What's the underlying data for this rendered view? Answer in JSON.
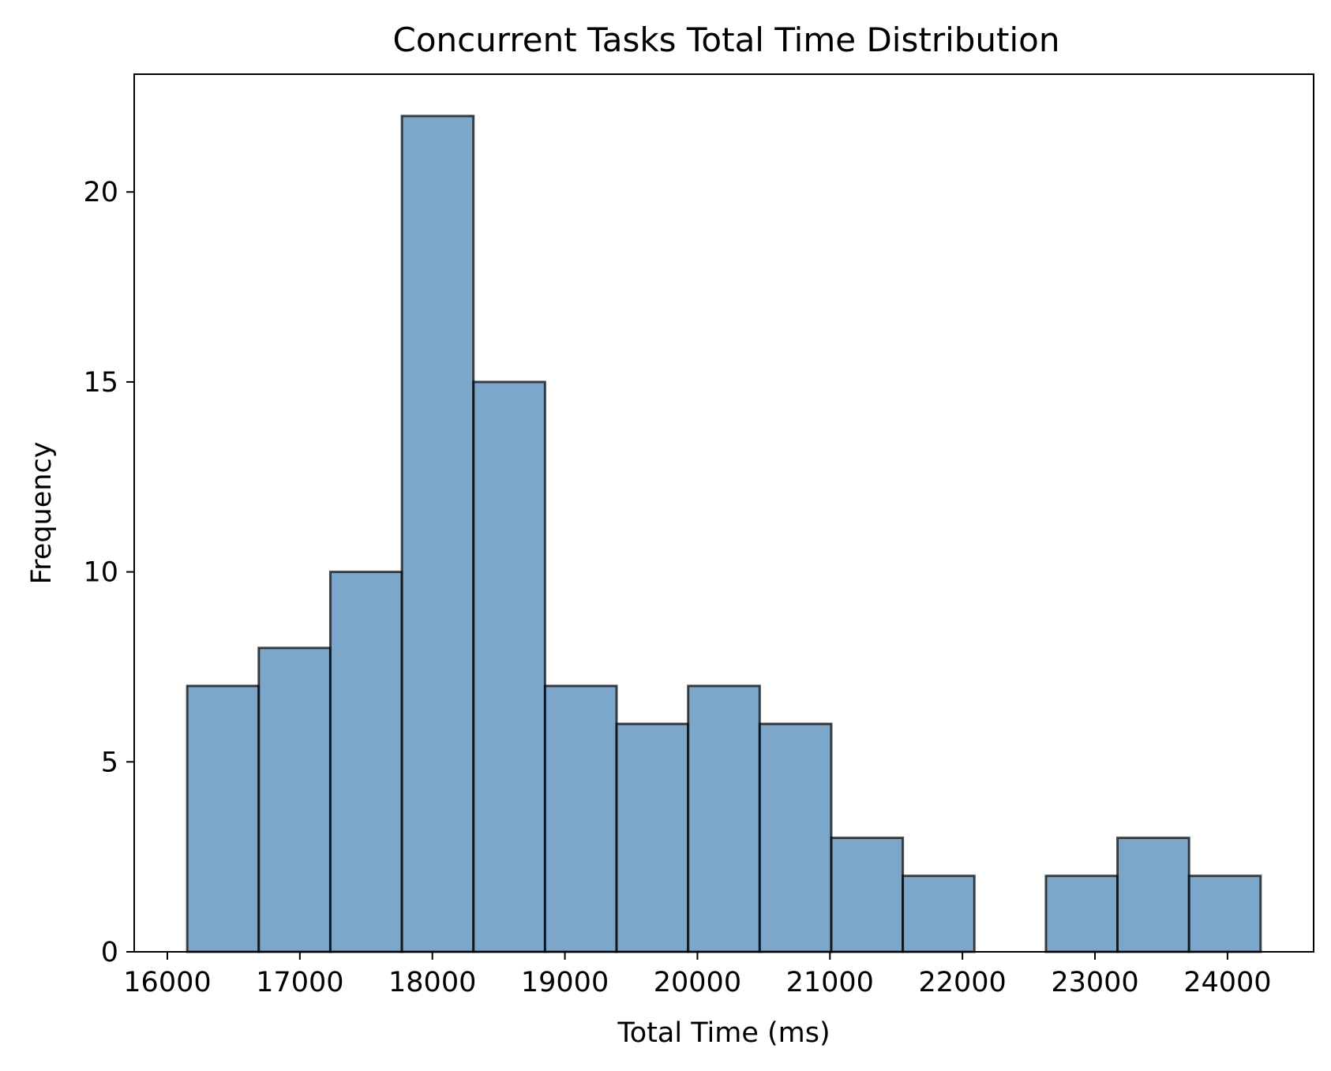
{
  "chart_data": {
    "type": "bar",
    "title": "Concurrent Tasks Total Time Distribution",
    "xlabel": "Total Time (ms)",
    "ylabel": "Frequency",
    "bins": [
      {
        "x0": 16150,
        "x1": 16690,
        "count": 7
      },
      {
        "x0": 16690,
        "x1": 17230,
        "count": 8
      },
      {
        "x0": 17230,
        "x1": 17770,
        "count": 10
      },
      {
        "x0": 17770,
        "x1": 18310,
        "count": 22
      },
      {
        "x0": 18310,
        "x1": 18850,
        "count": 15
      },
      {
        "x0": 18850,
        "x1": 19390,
        "count": 7
      },
      {
        "x0": 19390,
        "x1": 19930,
        "count": 6
      },
      {
        "x0": 19930,
        "x1": 20470,
        "count": 7
      },
      {
        "x0": 20470,
        "x1": 21010,
        "count": 6
      },
      {
        "x0": 21010,
        "x1": 21550,
        "count": 3
      },
      {
        "x0": 21550,
        "x1": 22090,
        "count": 2
      },
      {
        "x0": 22090,
        "x1": 22630,
        "count": 0
      },
      {
        "x0": 22630,
        "x1": 23170,
        "count": 2
      },
      {
        "x0": 23170,
        "x1": 23710,
        "count": 3
      },
      {
        "x0": 23710,
        "x1": 24250,
        "count": 2
      }
    ],
    "xticks": [
      16000,
      17000,
      18000,
      19000,
      20000,
      21000,
      22000,
      23000,
      24000
    ],
    "yticks": [
      0,
      5,
      10,
      15,
      20
    ],
    "xlim": [
      15750,
      24650
    ],
    "ylim": [
      0,
      23.1
    ],
    "grid": false,
    "bar_color": "#4682b4",
    "bar_opacity": 0.7,
    "edge_color": "#000000"
  }
}
